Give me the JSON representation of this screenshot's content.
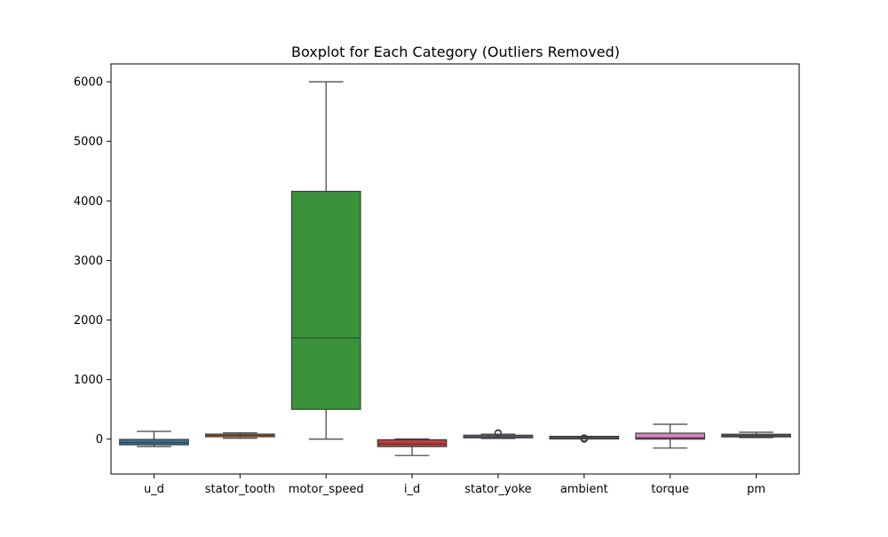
{
  "chart_data": {
    "type": "box",
    "title": "Boxplot for Each Category (Outliers Removed)",
    "xlabel": "",
    "ylabel": "",
    "ylim": [
      -585,
      6300
    ],
    "yticks": [
      0,
      1000,
      2000,
      3000,
      4000,
      5000,
      6000
    ],
    "grid": false,
    "categories": [
      "u_d",
      "stator_tooth",
      "motor_speed",
      "i_d",
      "stator_yoke",
      "ambient",
      "torque",
      "pm"
    ],
    "boxes": [
      {
        "category": "u_d",
        "whisker_low": -125,
        "q1": -95,
        "median": -60,
        "q3": -5,
        "whisker_high": 130,
        "color": "#3274a1",
        "outliers": []
      },
      {
        "category": "stator_tooth",
        "whisker_low": 15,
        "q1": 50,
        "median": 62,
        "q3": 75,
        "whisker_high": 105,
        "color": "#e1812c",
        "outliers": []
      },
      {
        "category": "motor_speed",
        "whisker_low": 0,
        "q1": 500,
        "median": 1700,
        "q3": 4160,
        "whisker_high": 6000,
        "color": "#3a923a",
        "outliers": []
      },
      {
        "category": "i_d",
        "whisker_low": -275,
        "q1": -125,
        "median": -80,
        "q3": -10,
        "whisker_high": 2,
        "color": "#c03d3e",
        "outliers": []
      },
      {
        "category": "stator_yoke",
        "whisker_low": 10,
        "q1": 30,
        "median": 42,
        "q3": 58,
        "whisker_high": 85,
        "color": "#9372b2",
        "outliers": [
          95,
          100,
          105
        ]
      },
      {
        "category": "ambient",
        "whisker_low": 12,
        "q1": 22,
        "median": 25,
        "q3": 28,
        "whisker_high": 35,
        "color": "#845b53",
        "outliers": [
          0,
          5,
          10,
          15,
          20
        ]
      },
      {
        "category": "torque",
        "whisker_low": -150,
        "q1": 0,
        "median": 20,
        "q3": 100,
        "whisker_high": 250,
        "color": "#d684bd",
        "outliers": []
      },
      {
        "category": "pm",
        "whisker_low": 25,
        "q1": 45,
        "median": 60,
        "q3": 75,
        "whisker_high": 115,
        "color": "#7f7f7f",
        "outliers": []
      }
    ]
  }
}
